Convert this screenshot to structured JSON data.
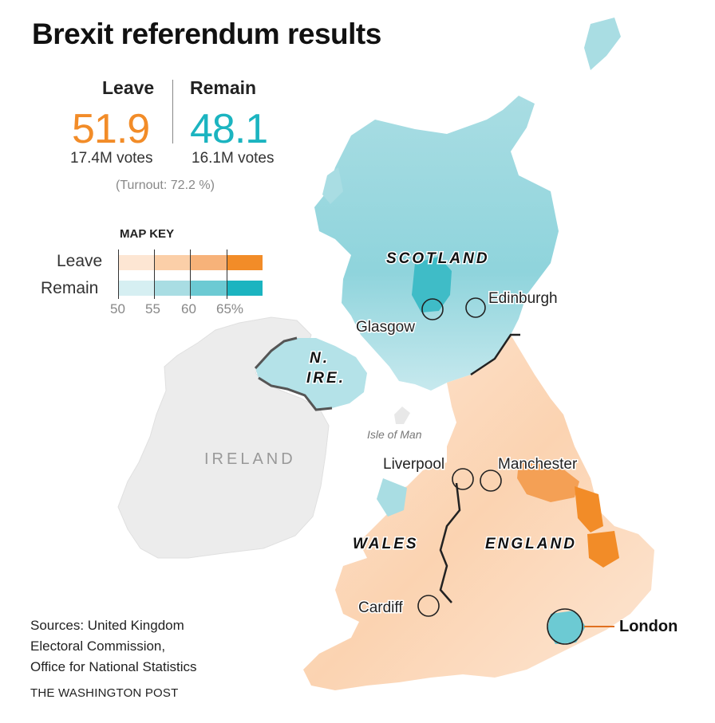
{
  "title": "Brexit referendum results",
  "leave": {
    "label": "Leave",
    "pct": "51.9",
    "votes": "17.4M votes",
    "color": "#f28c28"
  },
  "remain": {
    "label": "Remain",
    "pct": "48.1",
    "votes": "16.1M votes",
    "color": "#1bb4c0"
  },
  "turnout": "(Turnout: 72.2 %)",
  "map_key": {
    "title": "MAP KEY",
    "leave_label": "Leave",
    "remain_label": "Remain",
    "leave_colors": [
      "#fde6d3",
      "#fbcfa8",
      "#f7b279",
      "#f28c28"
    ],
    "remain_colors": [
      "#d6eff2",
      "#a9dde3",
      "#6ccad3",
      "#1bb4c0"
    ],
    "ticks": [
      "50",
      "55",
      "60",
      "65%"
    ]
  },
  "regions": {
    "scotland": "SCOTLAND",
    "n_ireland_1": "N.",
    "n_ireland_2": "IRE.",
    "wales": "WALES",
    "england": "ENGLAND",
    "ireland": "IRELAND",
    "isle_of_man": "Isle of Man"
  },
  "cities": {
    "glasgow": "Glasgow",
    "edinburgh": "Edinburgh",
    "liverpool": "Liverpool",
    "manchester": "Manchester",
    "cardiff": "Cardiff",
    "london": "London"
  },
  "sources": [
    "Sources: United Kingdom",
    "Electoral Commission,",
    "Office for National Statistics"
  ],
  "credit": "THE WASHINGTON POST"
}
